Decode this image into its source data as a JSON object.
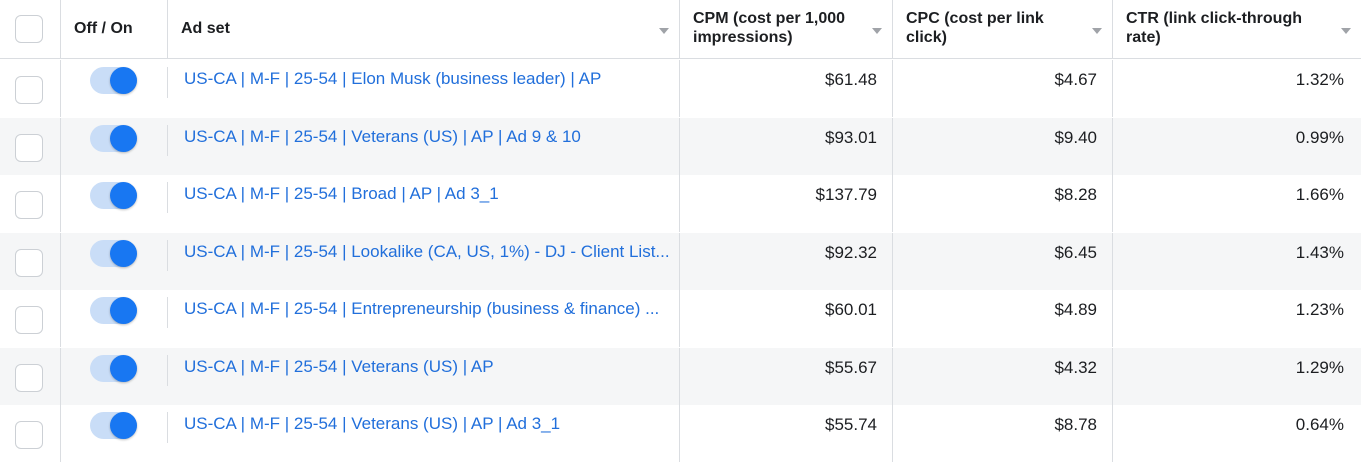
{
  "header": {
    "toggle_col": "Off / On",
    "adset_col": "Ad set",
    "cpm_col": "CPM (cost per 1,000 impressions)",
    "cpc_col": "CPC (cost per link click)",
    "ctr_col": "CTR (link click-through rate)"
  },
  "rows": [
    {
      "name": "US-CA | M-F | 25-54 | Elon Musk (business leader) | AP",
      "cpm": "$61.48",
      "cpc": "$4.67",
      "ctr": "1.32%",
      "on": true
    },
    {
      "name": "US-CA | M-F | 25-54 | Veterans (US) | AP | Ad 9 & 10",
      "cpm": "$93.01",
      "cpc": "$9.40",
      "ctr": "0.99%",
      "on": true
    },
    {
      "name": "US-CA | M-F | 25-54 | Broad | AP | Ad 3_1",
      "cpm": "$137.79",
      "cpc": "$8.28",
      "ctr": "1.66%",
      "on": true
    },
    {
      "name": "US-CA | M-F | 25-54 | Lookalike (CA, US, 1%) - DJ - Client List...",
      "cpm": "$92.32",
      "cpc": "$6.45",
      "ctr": "1.43%",
      "on": true
    },
    {
      "name": "US-CA | M-F | 25-54 | Entrepreneurship (business & finance) ...",
      "cpm": "$60.01",
      "cpc": "$4.89",
      "ctr": "1.23%",
      "on": true
    },
    {
      "name": "US-CA | M-F | 25-54 | Veterans (US) | AP",
      "cpm": "$55.67",
      "cpc": "$4.32",
      "ctr": "1.29%",
      "on": true
    },
    {
      "name": "US-CA | M-F | 25-54 | Veterans (US) | AP | Ad 3_1",
      "cpm": "$55.74",
      "cpc": "$8.78",
      "ctr": "0.64%",
      "on": true
    }
  ],
  "colors": {
    "link": "#216fdb",
    "toggle_on": "#1877f2",
    "toggle_track": "#c9ddf7",
    "row_alt": "#f5f6f7",
    "border": "#dadde1"
  }
}
